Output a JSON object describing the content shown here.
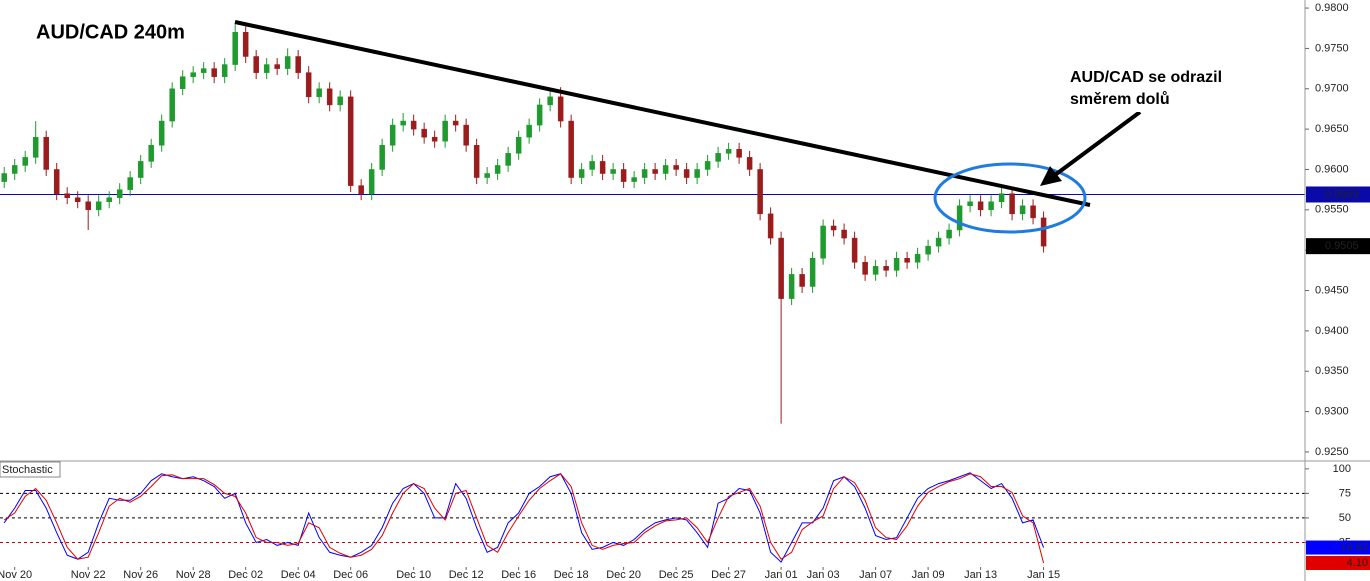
{
  "chart_data": [
    {
      "type": "candlestick",
      "title": "AUD/CAD 240m",
      "xlim": [
        -0.4,
        123.9
      ],
      "ylim": [
        0.924,
        0.981
      ],
      "yticks": [
        {
          "value": 0.925,
          "label": "0.9250"
        },
        {
          "value": 0.93,
          "label": "0.9300"
        },
        {
          "value": 0.935,
          "label": "0.9350"
        },
        {
          "value": 0.94,
          "label": "0.9400"
        },
        {
          "value": 0.945,
          "label": "0.9450"
        },
        {
          "value": 0.95,
          "label": "0.9500"
        },
        {
          "value": 0.955,
          "label": "0.9550"
        },
        {
          "value": 0.96,
          "label": "0.9600"
        },
        {
          "value": 0.965,
          "label": "0.9650"
        },
        {
          "value": 0.97,
          "label": "0.9700"
        },
        {
          "value": 0.975,
          "label": "0.9750"
        },
        {
          "value": 0.98,
          "label": "0.9800"
        }
      ],
      "up_color": "#1f9a2e",
      "down_color": "#9b1c1c",
      "open": [
        0.9585,
        0.9595,
        0.9605,
        0.9615,
        0.964,
        0.96,
        0.957,
        0.9565,
        0.956,
        0.955,
        0.956,
        0.9565,
        0.9575,
        0.959,
        0.961,
        0.963,
        0.966,
        0.97,
        0.9715,
        0.972,
        0.9725,
        0.9715,
        0.973,
        0.977,
        0.974,
        0.972,
        0.973,
        0.9725,
        0.974,
        0.972,
        0.969,
        0.97,
        0.968,
        0.969,
        0.958,
        0.957,
        0.96,
        0.963,
        0.9655,
        0.966,
        0.965,
        0.964,
        0.9635,
        0.966,
        0.9655,
        0.963,
        0.959,
        0.9595,
        0.9605,
        0.962,
        0.964,
        0.9655,
        0.968,
        0.969,
        0.966,
        0.959,
        0.96,
        0.961,
        0.9595,
        0.96,
        0.9585,
        0.959,
        0.96,
        0.9595,
        0.9605,
        0.96,
        0.959,
        0.96,
        0.961,
        0.962,
        0.9625,
        0.9615,
        0.96,
        0.9545,
        0.9515,
        0.944,
        0.947,
        0.9455,
        0.949,
        0.953,
        0.9525,
        0.9515,
        0.9485,
        0.947,
        0.948,
        0.9475,
        0.949,
        0.9485,
        0.9495,
        0.9505,
        0.9515,
        0.9525,
        0.9555,
        0.956,
        0.955,
        0.956,
        0.957,
        0.9545,
        0.9555,
        0.954
      ],
      "high": [
        0.9603,
        0.9613,
        0.9623,
        0.966,
        0.9648,
        0.9608,
        0.9578,
        0.9573,
        0.9568,
        0.9568,
        0.9573,
        0.9583,
        0.9598,
        0.9618,
        0.9638,
        0.9668,
        0.9708,
        0.9723,
        0.9728,
        0.9733,
        0.9733,
        0.9738,
        0.978,
        0.9778,
        0.9748,
        0.9738,
        0.9738,
        0.975,
        0.9748,
        0.9728,
        0.9708,
        0.9708,
        0.9698,
        0.9698,
        0.9588,
        0.9608,
        0.9638,
        0.9663,
        0.967,
        0.9668,
        0.9658,
        0.9648,
        0.9668,
        0.9668,
        0.9663,
        0.9638,
        0.9603,
        0.9613,
        0.9628,
        0.9648,
        0.9663,
        0.9688,
        0.9698,
        0.9702,
        0.9668,
        0.9608,
        0.9618,
        0.9618,
        0.9608,
        0.9608,
        0.9598,
        0.9608,
        0.9608,
        0.9613,
        0.9613,
        0.9608,
        0.9608,
        0.9618,
        0.9628,
        0.9633,
        0.9633,
        0.9623,
        0.9608,
        0.9553,
        0.9523,
        0.9478,
        0.9478,
        0.9498,
        0.9538,
        0.9538,
        0.9533,
        0.9523,
        0.9493,
        0.9488,
        0.9488,
        0.9498,
        0.9498,
        0.9503,
        0.9513,
        0.9523,
        0.9533,
        0.9563,
        0.9568,
        0.9568,
        0.9568,
        0.9578,
        0.9578,
        0.9563,
        0.9563,
        0.9548
      ],
      "low": [
        0.9577,
        0.9587,
        0.9597,
        0.9607,
        0.9592,
        0.9562,
        0.9557,
        0.9552,
        0.9525,
        0.9542,
        0.9552,
        0.9557,
        0.9567,
        0.9582,
        0.9602,
        0.9622,
        0.9652,
        0.9692,
        0.9707,
        0.9712,
        0.9707,
        0.9707,
        0.9722,
        0.9732,
        0.9712,
        0.9712,
        0.9717,
        0.9717,
        0.9712,
        0.9682,
        0.9682,
        0.9672,
        0.9672,
        0.9572,
        0.9562,
        0.9562,
        0.9592,
        0.9622,
        0.9647,
        0.9642,
        0.9632,
        0.9627,
        0.9627,
        0.9647,
        0.9622,
        0.9582,
        0.9582,
        0.9587,
        0.9597,
        0.9612,
        0.9632,
        0.9647,
        0.9672,
        0.9652,
        0.9582,
        0.9582,
        0.9592,
        0.9587,
        0.9587,
        0.9577,
        0.9577,
        0.9582,
        0.9587,
        0.9587,
        0.9592,
        0.9582,
        0.9582,
        0.9592,
        0.9602,
        0.9612,
        0.9607,
        0.9592,
        0.9537,
        0.9507,
        0.9285,
        0.9432,
        0.9447,
        0.9447,
        0.9482,
        0.9517,
        0.9507,
        0.9477,
        0.9462,
        0.9462,
        0.9467,
        0.9467,
        0.9477,
        0.9477,
        0.9487,
        0.9497,
        0.9507,
        0.9517,
        0.9547,
        0.9542,
        0.9542,
        0.9552,
        0.9537,
        0.9537,
        0.9532,
        0.9497
      ],
      "close": [
        0.9595,
        0.9605,
        0.9615,
        0.964,
        0.96,
        0.957,
        0.9565,
        0.956,
        0.955,
        0.956,
        0.9565,
        0.9575,
        0.959,
        0.961,
        0.963,
        0.966,
        0.97,
        0.9715,
        0.972,
        0.9725,
        0.9715,
        0.973,
        0.977,
        0.974,
        0.972,
        0.973,
        0.9725,
        0.974,
        0.972,
        0.969,
        0.97,
        0.968,
        0.969,
        0.958,
        0.957,
        0.96,
        0.963,
        0.9655,
        0.966,
        0.965,
        0.964,
        0.9635,
        0.966,
        0.9655,
        0.963,
        0.959,
        0.9595,
        0.9605,
        0.962,
        0.964,
        0.9655,
        0.968,
        0.969,
        0.966,
        0.959,
        0.96,
        0.961,
        0.9595,
        0.96,
        0.9585,
        0.959,
        0.96,
        0.9595,
        0.9605,
        0.96,
        0.959,
        0.96,
        0.961,
        0.962,
        0.9625,
        0.9615,
        0.96,
        0.9545,
        0.9515,
        0.944,
        0.947,
        0.9455,
        0.949,
        0.953,
        0.9525,
        0.9515,
        0.9485,
        0.947,
        0.948,
        0.9475,
        0.949,
        0.9485,
        0.9495,
        0.9505,
        0.9515,
        0.9525,
        0.9555,
        0.956,
        0.955,
        0.956,
        0.957,
        0.9545,
        0.9555,
        0.954,
        0.9505
      ],
      "hline": {
        "value": 0.9569,
        "label": "0.9569",
        "color": "#0a0aa8"
      },
      "annotation": [
        "AUD/CAD se odrazil",
        "směrem dolů"
      ]
    },
    {
      "type": "stochastic",
      "title": "Stochastic",
      "xlim": [
        -0.4,
        123.9
      ],
      "ylim": [
        0,
        107
      ],
      "yticks": [
        25,
        50,
        75,
        100
      ],
      "levels": [
        {
          "value": 75,
          "color": "#000000"
        },
        {
          "value": 50,
          "color": "#000000"
        },
        {
          "value": 25,
          "color": "#cc0000"
        }
      ],
      "xticks": [
        {
          "value": 1,
          "label": "Nov 20"
        },
        {
          "value": 8,
          "label": "Nov 22"
        },
        {
          "value": 13,
          "label": "Nov 26"
        },
        {
          "value": 18,
          "label": "Nov 28"
        },
        {
          "value": 23,
          "label": "Dec 02"
        },
        {
          "value": 28,
          "label": "Dec 04"
        },
        {
          "value": 33,
          "label": "Dec 06"
        },
        {
          "value": 39,
          "label": "Dec 10"
        },
        {
          "value": 44,
          "label": "Dec 12"
        },
        {
          "value": 49,
          "label": "Dec 16"
        },
        {
          "value": 54,
          "label": "Dec 18"
        },
        {
          "value": 59,
          "label": "Dec 20"
        },
        {
          "value": 64,
          "label": "Dec 25"
        },
        {
          "value": 69,
          "label": "Dec 27"
        },
        {
          "value": 74,
          "label": "Jan 01"
        },
        {
          "value": 78,
          "label": "Jan 03"
        },
        {
          "value": 83,
          "label": "Jan 07"
        },
        {
          "value": 88,
          "label": "Jan 09"
        },
        {
          "value": 93,
          "label": "Jan 13"
        },
        {
          "value": 99,
          "label": "Jan 15"
        }
      ],
      "series": [
        {
          "color": "#0000ff",
          "values": [
            45,
            60,
            78,
            78,
            60,
            35,
            12,
            8,
            15,
            45,
            70,
            68,
            68,
            75,
            88,
            95,
            92,
            90,
            92,
            88,
            82,
            70,
            75,
            45,
            25,
            28,
            22,
            25,
            22,
            55,
            30,
            15,
            12,
            10,
            15,
            22,
            40,
            65,
            80,
            85,
            75,
            50,
            50,
            85,
            70,
            40,
            15,
            20,
            45,
            55,
            75,
            82,
            92,
            95,
            75,
            35,
            18,
            20,
            25,
            22,
            28,
            38,
            45,
            48,
            50,
            48,
            35,
            20,
            65,
            70,
            80,
            78,
            55,
            15,
            5,
            25,
            45,
            45,
            60,
            88,
            92,
            82,
            60,
            32,
            28,
            30,
            50,
            70,
            80,
            85,
            88,
            92,
            96,
            88,
            80,
            85,
            70,
            45,
            48,
            19.83
          ]
        },
        {
          "color": "#e00000",
          "values": [
            48,
            55,
            72,
            80,
            68,
            45,
            20,
            8,
            10,
            35,
            62,
            70,
            66,
            72,
            82,
            93,
            94,
            90,
            90,
            90,
            84,
            75,
            72,
            55,
            30,
            25,
            25,
            22,
            24,
            45,
            40,
            20,
            14,
            10,
            12,
            18,
            32,
            55,
            75,
            85,
            80,
            60,
            48,
            75,
            78,
            50,
            22,
            15,
            35,
            52,
            68,
            80,
            88,
            95,
            82,
            45,
            22,
            18,
            22,
            24,
            25,
            35,
            42,
            47,
            48,
            50,
            40,
            25,
            50,
            72,
            76,
            80,
            62,
            25,
            8,
            15,
            38,
            46,
            52,
            80,
            92,
            86,
            68,
            40,
            30,
            28,
            42,
            62,
            76,
            82,
            87,
            90,
            95,
            92,
            82,
            82,
            76,
            52,
            45,
            4.1
          ],
          "last_label": "4.10"
        }
      ]
    }
  ]
}
